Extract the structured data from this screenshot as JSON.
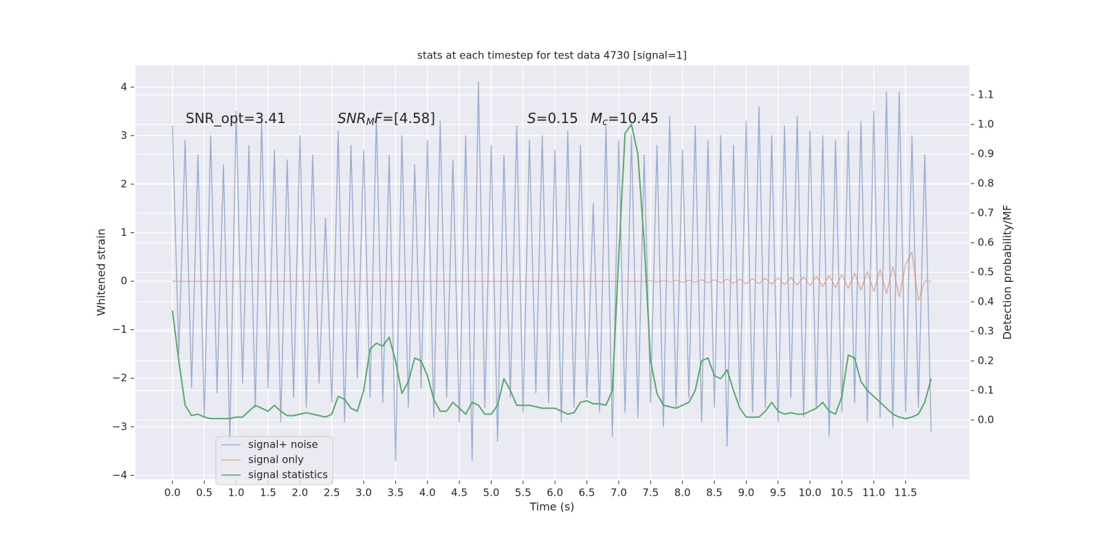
{
  "chart_data": {
    "type": "line",
    "title": "stats at each timestep for test data 4730 [signal=1]",
    "xlabel": "Time (s)",
    "ylabel": "Whitened strain",
    "y2label": "Detection probability/MF",
    "annotations": [
      {
        "parts": [
          {
            "text": "SNR_opt=3.41"
          }
        ]
      },
      {
        "parts": [
          {
            "text": "SNR",
            "style": "italic"
          },
          {
            "text": "M",
            "style": "sub"
          },
          {
            "text": "F",
            "style": "italic"
          },
          {
            "text": "=[4.58]"
          }
        ]
      },
      {
        "parts": [
          {
            "text": "S",
            "style": "italic"
          },
          {
            "text": "=0.15"
          }
        ]
      },
      {
        "parts": [
          {
            "text": "M",
            "style": "italic"
          },
          {
            "text": "c",
            "style": "sub"
          },
          {
            "text": "=10.45"
          }
        ]
      }
    ],
    "x": [
      0.0,
      0.1,
      0.2,
      0.3,
      0.4,
      0.5,
      0.6,
      0.7,
      0.8,
      0.9,
      1.0,
      1.1,
      1.2,
      1.3,
      1.4,
      1.5,
      1.6,
      1.7,
      1.8,
      1.9,
      2.0,
      2.1,
      2.2,
      2.3,
      2.4,
      2.5,
      2.6,
      2.7,
      2.8,
      2.9,
      3.0,
      3.1,
      3.2,
      3.3,
      3.4,
      3.5,
      3.6,
      3.7,
      3.8,
      3.9,
      4.0,
      4.1,
      4.2,
      4.3,
      4.4,
      4.5,
      4.6,
      4.7,
      4.8,
      4.9,
      5.0,
      5.1,
      5.2,
      5.3,
      5.4,
      5.5,
      5.6,
      5.7,
      5.8,
      5.9,
      6.0,
      6.1,
      6.2,
      6.3,
      6.4,
      6.5,
      6.6,
      6.7,
      6.8,
      6.9,
      7.0,
      7.1,
      7.2,
      7.3,
      7.4,
      7.5,
      7.6,
      7.7,
      7.8,
      7.9,
      8.0,
      8.1,
      8.2,
      8.3,
      8.4,
      8.5,
      8.6,
      8.7,
      8.8,
      8.9,
      9.0,
      9.1,
      9.2,
      9.3,
      9.4,
      9.5,
      9.6,
      9.7,
      9.8,
      9.9,
      10.0,
      10.1,
      10.2,
      10.3,
      10.4,
      10.5,
      10.6,
      10.7,
      10.8,
      10.9,
      11.0,
      11.1,
      11.2,
      11.3,
      11.4,
      11.5,
      11.6,
      11.7,
      11.8,
      11.9
    ],
    "series": [
      {
        "name": "signal+ noise",
        "color": "#4c72b0",
        "opacity": 0.5,
        "axis": "y",
        "values": [
          3.2,
          -1.5,
          2.9,
          -2.2,
          2.6,
          -2.8,
          3.0,
          -2.3,
          2.4,
          -3.3,
          3.5,
          -2.1,
          2.8,
          -2.6,
          3.3,
          -2.2,
          2.7,
          -2.9,
          2.5,
          -2.4,
          3.0,
          -2.6,
          2.6,
          -2.1,
          1.3,
          -2.5,
          3.1,
          -2.9,
          2.8,
          -2.0,
          2.7,
          -2.4,
          3.4,
          -2.5,
          2.6,
          -3.7,
          3.0,
          -2.6,
          2.4,
          -2.2,
          2.9,
          -2.8,
          3.3,
          -2.4,
          2.5,
          -2.9,
          3.0,
          -3.7,
          4.1,
          -2.6,
          2.8,
          -3.3,
          2.6,
          -2.4,
          3.2,
          -2.7,
          2.9,
          -2.3,
          3.0,
          -2.5,
          2.7,
          -2.9,
          3.1,
          -2.6,
          2.8,
          -2.4,
          1.6,
          -2.7,
          3.2,
          -3.2,
          2.9,
          -2.7,
          3.0,
          -2.8,
          2.6,
          -2.5,
          2.8,
          -3.0,
          3.4,
          -2.6,
          2.7,
          -2.4,
          3.2,
          -2.9,
          2.9,
          -2.6,
          3.0,
          -3.4,
          2.8,
          -2.5,
          3.3,
          -2.7,
          3.6,
          -2.6,
          3.0,
          -2.9,
          3.2,
          -2.4,
          3.4,
          -2.8,
          3.1,
          -2.6,
          3.0,
          -3.2,
          2.9,
          -2.7,
          3.1,
          -2.5,
          3.3,
          -2.9,
          3.5,
          -2.8,
          3.9,
          -3.0,
          3.9,
          -2.7,
          3.0,
          -2.6,
          2.6,
          -3.1
        ]
      },
      {
        "name": "signal only",
        "color": "#dd8452",
        "opacity": 0.6,
        "axis": "y",
        "values": [
          0,
          0,
          0,
          0,
          0,
          0,
          0,
          0,
          0,
          0,
          0,
          0,
          0,
          0,
          0,
          0,
          0,
          0,
          0,
          0,
          0,
          0,
          0,
          0,
          0,
          0,
          0,
          0,
          0,
          0,
          0,
          0,
          0,
          0,
          0,
          0,
          0,
          0,
          0,
          0,
          0,
          0,
          0,
          0,
          0,
          0,
          0,
          0,
          0,
          0,
          0,
          0,
          0,
          0,
          0,
          0,
          0,
          0,
          0,
          0,
          0,
          0,
          0,
          0,
          0,
          0,
          0,
          0,
          0,
          0,
          0,
          0,
          0,
          0,
          0,
          0.01,
          -0.01,
          0.01,
          -0.01,
          0.02,
          -0.02,
          0.02,
          -0.02,
          0.03,
          -0.03,
          0.03,
          -0.03,
          0.04,
          -0.04,
          0.04,
          -0.05,
          0.05,
          -0.05,
          0.06,
          -0.06,
          0.07,
          -0.07,
          0.08,
          -0.08,
          0.09,
          -0.09,
          0.1,
          -0.11,
          0.12,
          -0.13,
          0.14,
          -0.15,
          0.17,
          -0.18,
          0.2,
          -0.21,
          0.24,
          -0.26,
          0.3,
          -0.32,
          0.35,
          0.6,
          -0.4,
          0,
          0
        ]
      },
      {
        "name": "signal statistics",
        "color": "#55a868",
        "opacity": 1,
        "axis": "y2",
        "values": [
          0.37,
          0.2,
          0.05,
          0.015,
          0.02,
          0.01,
          0.005,
          0.005,
          0.005,
          0.005,
          0.01,
          0.01,
          0.03,
          0.05,
          0.04,
          0.03,
          0.05,
          0.03,
          0.015,
          0.015,
          0.02,
          0.025,
          0.02,
          0.015,
          0.01,
          0.02,
          0.08,
          0.07,
          0.04,
          0.03,
          0.1,
          0.24,
          0.26,
          0.25,
          0.28,
          0.2,
          0.09,
          0.13,
          0.21,
          0.2,
          0.15,
          0.07,
          0.03,
          0.03,
          0.06,
          0.04,
          0.02,
          0.06,
          0.05,
          0.02,
          0.02,
          0.05,
          0.14,
          0.1,
          0.05,
          0.05,
          0.05,
          0.045,
          0.04,
          0.04,
          0.04,
          0.03,
          0.02,
          0.025,
          0.06,
          0.065,
          0.055,
          0.055,
          0.05,
          0.1,
          0.55,
          0.97,
          1.0,
          0.9,
          0.6,
          0.2,
          0.09,
          0.05,
          0.045,
          0.04,
          0.05,
          0.06,
          0.1,
          0.2,
          0.21,
          0.15,
          0.14,
          0.17,
          0.1,
          0.04,
          0.01,
          0.01,
          0.01,
          0.03,
          0.06,
          0.03,
          0.02,
          0.025,
          0.02,
          0.02,
          0.03,
          0.04,
          0.06,
          0.03,
          0.02,
          0.08,
          0.22,
          0.21,
          0.13,
          0.1,
          0.08,
          0.06,
          0.04,
          0.02,
          0.01,
          0.005,
          0.01,
          0.02,
          0.06,
          0.14
        ]
      }
    ],
    "xlim": [
      -0.58,
      12.5
    ],
    "ylim": [
      -4.08,
      4.45
    ],
    "y2lim": [
      -0.2,
      1.2
    ],
    "xticks": [
      {
        "value": 0,
        "label": "0.0"
      },
      {
        "value": 0.5,
        "label": "0.5"
      },
      {
        "value": 1,
        "label": "1.0"
      },
      {
        "value": 1.5,
        "label": "1.5"
      },
      {
        "value": 2,
        "label": "2.0"
      },
      {
        "value": 2.5,
        "label": "2.5"
      },
      {
        "value": 3,
        "label": "3.0"
      },
      {
        "value": 3.5,
        "label": "3.5"
      },
      {
        "value": 4,
        "label": "4.0"
      },
      {
        "value": 4.5,
        "label": "4.5"
      },
      {
        "value": 5,
        "label": "5.0"
      },
      {
        "value": 5.5,
        "label": "5.5"
      },
      {
        "value": 6,
        "label": "6.0"
      },
      {
        "value": 6.5,
        "label": "6.5"
      },
      {
        "value": 7,
        "label": "7.0"
      },
      {
        "value": 7.5,
        "label": "7.5"
      },
      {
        "value": 8,
        "label": "8.0"
      },
      {
        "value": 8.5,
        "label": "8.5"
      },
      {
        "value": 9,
        "label": "9.0"
      },
      {
        "value": 9.5,
        "label": "9.5"
      },
      {
        "value": 10,
        "label": "10.0"
      },
      {
        "value": 10.5,
        "label": "10.5"
      },
      {
        "value": 11,
        "label": "11.0"
      },
      {
        "value": 11.5,
        "label": "11.5"
      }
    ],
    "yticks": [
      {
        "value": -4,
        "label": "−4"
      },
      {
        "value": -3,
        "label": "−3"
      },
      {
        "value": -2,
        "label": "−2"
      },
      {
        "value": -1,
        "label": "−1"
      },
      0,
      1,
      2,
      3,
      4
    ],
    "y2ticks": [
      {
        "value": 0,
        "label": "0.0"
      },
      {
        "value": 0.1,
        "label": "0.1"
      },
      {
        "value": 0.2,
        "label": "0.2"
      },
      {
        "value": 0.3,
        "label": "0.3"
      },
      {
        "value": 0.4,
        "label": "0.4"
      },
      {
        "value": 0.5,
        "label": "0.5"
      },
      {
        "value": 0.6,
        "label": "0.6"
      },
      {
        "value": 0.7,
        "label": "0.7"
      },
      {
        "value": 0.8,
        "label": "0.8"
      },
      {
        "value": 0.9,
        "label": "0.9"
      },
      {
        "value": 1,
        "label": "1.0"
      },
      {
        "value": 1.1,
        "label": "1.1"
      }
    ],
    "grid": true,
    "legend": "lower left"
  }
}
